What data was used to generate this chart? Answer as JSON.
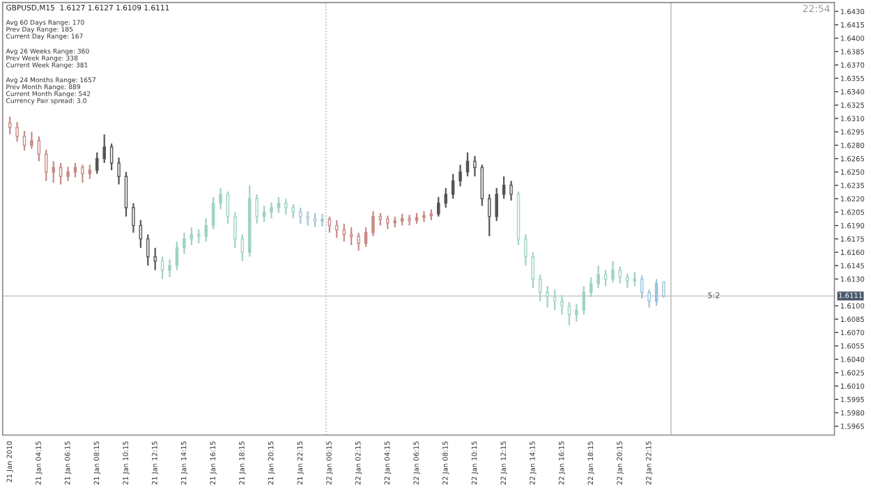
{
  "chart_data": {
    "type": "candlestick",
    "title": "GBPUSD,M15  1.6127 1.6127 1.6109 1.6111",
    "subtitle": "22:54",
    "annotations": [
      "Avg 60 Days Range: 170\nPrev Day Range: 185\nCurrent Day Range: 167",
      "Avg 26 Weeks Range: 360\nPrev Week Range: 338\nCurrent Week Range: 381",
      "Avg 24 Months Range: 1657\nPrev Month Range: 889\nCurrent Month Range: 542\nCurrency Pair spread: 3.0",
      {
        "text": "5:2",
        "x": "2010-01-23T02:42",
        "y": 1.6111
      }
    ],
    "x": [
      "2010-01-21T02:15",
      "2010-01-21T02:45",
      "2010-01-21T03:15",
      "2010-01-21T03:45",
      "2010-01-21T04:15",
      "2010-01-21T04:45",
      "2010-01-21T05:15",
      "2010-01-21T05:45",
      "2010-01-21T06:15",
      "2010-01-21T06:45",
      "2010-01-21T07:15",
      "2010-01-21T07:45",
      "2010-01-21T08:15",
      "2010-01-21T08:45",
      "2010-01-21T09:15",
      "2010-01-21T09:45",
      "2010-01-21T10:15",
      "2010-01-21T10:45",
      "2010-01-21T11:15",
      "2010-01-21T11:45",
      "2010-01-21T12:15",
      "2010-01-21T12:45",
      "2010-01-21T13:15",
      "2010-01-21T13:45",
      "2010-01-21T14:15",
      "2010-01-21T14:45",
      "2010-01-21T15:15",
      "2010-01-21T15:45",
      "2010-01-21T16:15",
      "2010-01-21T16:45",
      "2010-01-21T17:15",
      "2010-01-21T17:45",
      "2010-01-21T18:15",
      "2010-01-21T18:45",
      "2010-01-21T19:15",
      "2010-01-21T19:45",
      "2010-01-21T20:15",
      "2010-01-21T20:45",
      "2010-01-21T21:15",
      "2010-01-21T21:45",
      "2010-01-21T22:15",
      "2010-01-21T22:45",
      "2010-01-21T23:15",
      "2010-01-21T23:45",
      "2010-01-22T00:15",
      "2010-01-22T00:45",
      "2010-01-22T01:15",
      "2010-01-22T01:45",
      "2010-01-22T02:15",
      "2010-01-22T02:45",
      "2010-01-22T03:15",
      "2010-01-22T03:45",
      "2010-01-22T04:15",
      "2010-01-22T04:45",
      "2010-01-22T05:15",
      "2010-01-22T05:45",
      "2010-01-22T06:15",
      "2010-01-22T06:45",
      "2010-01-22T07:15",
      "2010-01-22T07:45",
      "2010-01-22T08:15",
      "2010-01-22T08:45",
      "2010-01-22T09:15",
      "2010-01-22T09:45",
      "2010-01-22T10:15",
      "2010-01-22T10:45",
      "2010-01-22T11:15",
      "2010-01-22T11:45",
      "2010-01-22T12:15",
      "2010-01-22T12:45",
      "2010-01-22T13:15",
      "2010-01-22T13:45",
      "2010-01-22T14:15",
      "2010-01-22T14:45",
      "2010-01-22T15:15",
      "2010-01-22T15:45",
      "2010-01-22T16:15",
      "2010-01-22T16:45",
      "2010-01-22T17:15",
      "2010-01-22T17:45",
      "2010-01-22T18:15",
      "2010-01-22T18:45",
      "2010-01-22T19:15",
      "2010-01-22T19:45",
      "2010-01-22T20:15",
      "2010-01-22T20:45",
      "2010-01-22T21:15",
      "2010-01-22T21:45",
      "2010-01-22T22:15",
      "2010-01-22T22:45",
      "2010-01-22T23:15"
    ],
    "ohlc": [
      [
        1.6305,
        1.6312,
        1.6292,
        1.63
      ],
      [
        1.63,
        1.6306,
        1.6284,
        1.629
      ],
      [
        1.629,
        1.6296,
        1.6274,
        1.628
      ],
      [
        1.628,
        1.6295,
        1.6276,
        1.6285
      ],
      [
        1.6285,
        1.629,
        1.6262,
        1.627
      ],
      [
        1.627,
        1.6275,
        1.624,
        1.625
      ],
      [
        1.625,
        1.6262,
        1.6238,
        1.6255
      ],
      [
        1.6255,
        1.626,
        1.6236,
        1.6245
      ],
      [
        1.6245,
        1.6256,
        1.624,
        1.625
      ],
      [
        1.625,
        1.626,
        1.6244,
        1.6255
      ],
      [
        1.6255,
        1.6258,
        1.6238,
        1.6248
      ],
      [
        1.6248,
        1.6258,
        1.6242,
        1.6252
      ],
      [
        1.6252,
        1.6272,
        1.6248,
        1.6265
      ],
      [
        1.6265,
        1.6292,
        1.626,
        1.6278
      ],
      [
        1.6278,
        1.6282,
        1.6252,
        1.626
      ],
      [
        1.626,
        1.6266,
        1.6236,
        1.6245
      ],
      [
        1.6245,
        1.625,
        1.62,
        1.621
      ],
      [
        1.621,
        1.6215,
        1.6182,
        1.619
      ],
      [
        1.619,
        1.6196,
        1.6165,
        1.6175
      ],
      [
        1.6175,
        1.618,
        1.6145,
        1.6155
      ],
      [
        1.6155,
        1.6165,
        1.614,
        1.615
      ],
      [
        1.615,
        1.6155,
        1.613,
        1.614
      ],
      [
        1.614,
        1.6152,
        1.6132,
        1.6145
      ],
      [
        1.6145,
        1.6172,
        1.614,
        1.6165
      ],
      [
        1.6165,
        1.6182,
        1.6158,
        1.6175
      ],
      [
        1.6175,
        1.6188,
        1.6168,
        1.618
      ],
      [
        1.618,
        1.6186,
        1.617,
        1.6178
      ],
      [
        1.6178,
        1.6198,
        1.6172,
        1.619
      ],
      [
        1.619,
        1.6222,
        1.6186,
        1.6215
      ],
      [
        1.6215,
        1.6232,
        1.6208,
        1.6225
      ],
      [
        1.6225,
        1.6228,
        1.6192,
        1.62
      ],
      [
        1.62,
        1.6205,
        1.6165,
        1.6175
      ],
      [
        1.6175,
        1.618,
        1.615,
        1.616
      ],
      [
        1.616,
        1.6235,
        1.6155,
        1.622
      ],
      [
        1.622,
        1.6225,
        1.6192,
        1.62
      ],
      [
        1.62,
        1.6212,
        1.6194,
        1.6205
      ],
      [
        1.6205,
        1.6216,
        1.6198,
        1.621
      ],
      [
        1.621,
        1.6222,
        1.6204,
        1.6215
      ],
      [
        1.6215,
        1.622,
        1.6202,
        1.621
      ],
      [
        1.621,
        1.6214,
        1.6198,
        1.6205
      ],
      [
        1.6205,
        1.621,
        1.6192,
        1.62
      ],
      [
        1.62,
        1.6206,
        1.619,
        1.6198
      ],
      [
        1.6198,
        1.6204,
        1.6188,
        1.6195
      ],
      [
        1.6195,
        1.6203,
        1.6189,
        1.6197
      ],
      [
        1.6197,
        1.62,
        1.6182,
        1.619
      ],
      [
        1.619,
        1.6196,
        1.6176,
        1.6185
      ],
      [
        1.6185,
        1.6192,
        1.6172,
        1.618
      ],
      [
        1.618,
        1.6188,
        1.6168,
        1.6178
      ],
      [
        1.6178,
        1.6182,
        1.6162,
        1.617
      ],
      [
        1.617,
        1.6188,
        1.6166,
        1.6182
      ],
      [
        1.6182,
        1.6206,
        1.6178,
        1.62
      ],
      [
        1.62,
        1.6204,
        1.619,
        1.6197
      ],
      [
        1.6197,
        1.6201,
        1.6186,
        1.6193
      ],
      [
        1.6193,
        1.62,
        1.6188,
        1.6195
      ],
      [
        1.6195,
        1.6203,
        1.619,
        1.6198
      ],
      [
        1.6198,
        1.6202,
        1.619,
        1.6196
      ],
      [
        1.6196,
        1.6204,
        1.6192,
        1.6199
      ],
      [
        1.6199,
        1.6206,
        1.6194,
        1.6201
      ],
      [
        1.6201,
        1.6208,
        1.6196,
        1.6203
      ],
      [
        1.6203,
        1.6222,
        1.62,
        1.6215
      ],
      [
        1.6215,
        1.6232,
        1.621,
        1.6225
      ],
      [
        1.6225,
        1.6248,
        1.622,
        1.624
      ],
      [
        1.624,
        1.6258,
        1.6234,
        1.625
      ],
      [
        1.625,
        1.6272,
        1.6245,
        1.6262
      ],
      [
        1.6262,
        1.6268,
        1.6245,
        1.6255
      ],
      [
        1.6255,
        1.6258,
        1.6212,
        1.622
      ],
      [
        1.622,
        1.6225,
        1.6178,
        1.62
      ],
      [
        1.62,
        1.6232,
        1.6195,
        1.6225
      ],
      [
        1.6225,
        1.6245,
        1.622,
        1.6235
      ],
      [
        1.6235,
        1.624,
        1.6218,
        1.6225
      ],
      [
        1.6225,
        1.6228,
        1.6168,
        1.6175
      ],
      [
        1.6175,
        1.618,
        1.6145,
        1.6155
      ],
      [
        1.6155,
        1.616,
        1.612,
        1.613
      ],
      [
        1.613,
        1.6135,
        1.6105,
        1.6115
      ],
      [
        1.6115,
        1.6122,
        1.6098,
        1.611
      ],
      [
        1.611,
        1.6118,
        1.6095,
        1.6105
      ],
      [
        1.6105,
        1.6112,
        1.609,
        1.61
      ],
      [
        1.61,
        1.6104,
        1.6078,
        1.609
      ],
      [
        1.609,
        1.6102,
        1.6082,
        1.6095
      ],
      [
        1.6095,
        1.6122,
        1.609,
        1.6115
      ],
      [
        1.6115,
        1.6132,
        1.611,
        1.6125
      ],
      [
        1.6125,
        1.6145,
        1.612,
        1.6135
      ],
      [
        1.6135,
        1.614,
        1.6122,
        1.613
      ],
      [
        1.613,
        1.615,
        1.6126,
        1.614
      ],
      [
        1.614,
        1.6144,
        1.6125,
        1.6132
      ],
      [
        1.6132,
        1.6136,
        1.612,
        1.6128
      ],
      [
        1.6128,
        1.6138,
        1.6122,
        1.613
      ],
      [
        1.613,
        1.6134,
        1.6108,
        1.6115
      ],
      [
        1.6115,
        1.6118,
        1.6098,
        1.6105
      ],
      [
        1.6105,
        1.613,
        1.61,
        1.6125
      ],
      [
        1.6127,
        1.6127,
        1.6109,
        1.6111
      ]
    ],
    "colors": [
      "#c98a86",
      "#c98a86",
      "#c98a86",
      "#c98a86",
      "#c98a86",
      "#c98a86",
      "#c98a86",
      "#c98a86",
      "#c98a86",
      "#c98a86",
      "#c98a86",
      "#c98a86",
      "#555555",
      "#555555",
      "#555555",
      "#555555",
      "#555555",
      "#555555",
      "#555555",
      "#555555",
      "#555555",
      "#9fd3c0",
      "#9fd3c0",
      "#9fd3c0",
      "#9fd3c0",
      "#9fd3c0",
      "#9fd3c0",
      "#9fd3c0",
      "#9fd3c0",
      "#9fd3c0",
      "#9fd3c0",
      "#9fd3c0",
      "#9fd3c0",
      "#9fd3c0",
      "#9fd3c0",
      "#9fd3c0",
      "#9fd3c0",
      "#9fd3c0",
      "#9fd3c0",
      "#9fd3c0",
      "#a3c6d4",
      "#a3c6d4",
      "#a3c6d4",
      "#a3c6d4",
      "#c98a86",
      "#c98a86",
      "#c98a86",
      "#c98a86",
      "#c98a86",
      "#c98a86",
      "#c98a86",
      "#c98a86",
      "#c98a86",
      "#c98a86",
      "#c98a86",
      "#c98a86",
      "#c98a86",
      "#c98a86",
      "#c98a86",
      "#555555",
      "#555555",
      "#555555",
      "#555555",
      "#555555",
      "#555555",
      "#555555",
      "#555555",
      "#555555",
      "#555555",
      "#555555",
      "#9fd3c0",
      "#9fd3c0",
      "#9fd3c0",
      "#9fd3c0",
      "#9fd3c0",
      "#9fd3c0",
      "#9fd3c0",
      "#9fd3c0",
      "#9fd3c0",
      "#9fd3c0",
      "#9fd3c0",
      "#9fd3c0",
      "#9fd3c0",
      "#9fd3c0",
      "#9fd3c0",
      "#9fd3c0",
      "#9fd3c0",
      "#9cc3dc",
      "#9cc3dc",
      "#9cc3dc",
      "#9cc3dc"
    ],
    "xlim": [
      "2010-01-21T01:45",
      "2010-01-23T11:00"
    ],
    "xticks": [
      {
        "value": "2010-01-21T02:15",
        "label": "21 Jan 2010"
      },
      {
        "value": "2010-01-21T04:15",
        "label": "21 Jan 04:15"
      },
      {
        "value": "2010-01-21T06:15",
        "label": "21 Jan 06:15"
      },
      {
        "value": "2010-01-21T08:15",
        "label": "21 Jan 08:15"
      },
      {
        "value": "2010-01-21T10:15",
        "label": "21 Jan 10:15"
      },
      {
        "value": "2010-01-21T12:15",
        "label": "21 Jan 12:15"
      },
      {
        "value": "2010-01-21T14:15",
        "label": "21 Jan 14:15"
      },
      {
        "value": "2010-01-21T16:15",
        "label": "21 Jan 16:15"
      },
      {
        "value": "2010-01-21T18:15",
        "label": "21 Jan 18:15"
      },
      {
        "value": "2010-01-21T20:15",
        "label": "21 Jan 20:15"
      },
      {
        "value": "2010-01-21T22:15",
        "label": "21 Jan 22:15"
      },
      {
        "value": "2010-01-22T00:15",
        "label": "22 Jan 00:15"
      },
      {
        "value": "2010-01-22T02:15",
        "label": "22 Jan 02:15"
      },
      {
        "value": "2010-01-22T04:15",
        "label": "22 Jan 04:15"
      },
      {
        "value": "2010-01-22T06:15",
        "label": "22 Jan 06:15"
      },
      {
        "value": "2010-01-22T08:15",
        "label": "22 Jan 08:15"
      },
      {
        "value": "2010-01-22T10:15",
        "label": "22 Jan 10:15"
      },
      {
        "value": "2010-01-22T12:15",
        "label": "22 Jan 12:15"
      },
      {
        "value": "2010-01-22T14:15",
        "label": "22 Jan 14:15"
      },
      {
        "value": "2010-01-22T16:15",
        "label": "22 Jan 16:15"
      },
      {
        "value": "2010-01-22T18:15",
        "label": "22 Jan 18:15"
      },
      {
        "value": "2010-01-22T20:15",
        "label": "22 Jan 20:15"
      },
      {
        "value": "2010-01-22T22:15",
        "label": "22 Jan 22:15"
      }
    ],
    "ylim": [
      1.5955,
      1.644
    ],
    "yticks": [
      {
        "value": 1.5965,
        "label": "1.5965"
      },
      {
        "value": 1.598,
        "label": "1.5980"
      },
      {
        "value": 1.5995,
        "label": "1.5995"
      },
      {
        "value": 1.601,
        "label": "1.6010"
      },
      {
        "value": 1.6025,
        "label": "1.6025"
      },
      {
        "value": 1.604,
        "label": "1.6040"
      },
      {
        "value": 1.6055,
        "label": "1.6055"
      },
      {
        "value": 1.607,
        "label": "1.6070"
      },
      {
        "value": 1.6085,
        "label": "1.6085"
      },
      {
        "value": 1.61,
        "label": "1.6100"
      },
      {
        "value": 1.613,
        "label": "1.6130"
      },
      {
        "value": 1.6145,
        "label": "1.6145"
      },
      {
        "value": 1.616,
        "label": "1.6160"
      },
      {
        "value": 1.6175,
        "label": "1.6175"
      },
      {
        "value": 1.619,
        "label": "1.6190"
      },
      {
        "value": 1.6205,
        "label": "1.6205"
      },
      {
        "value": 1.622,
        "label": "1.6220"
      },
      {
        "value": 1.6235,
        "label": "1.6235"
      },
      {
        "value": 1.625,
        "label": "1.6250"
      },
      {
        "value": 1.6265,
        "label": "1.6265"
      },
      {
        "value": 1.628,
        "label": "1.6280"
      },
      {
        "value": 1.6295,
        "label": "1.6295"
      },
      {
        "value": 1.631,
        "label": "1.6310"
      },
      {
        "value": 1.6325,
        "label": "1.6325"
      },
      {
        "value": 1.634,
        "label": "1.6340"
      },
      {
        "value": 1.6355,
        "label": "1.6355"
      },
      {
        "value": 1.637,
        "label": "1.6370"
      },
      {
        "value": 1.6385,
        "label": "1.6385"
      },
      {
        "value": 1.64,
        "label": "1.6400"
      },
      {
        "value": 1.6415,
        "label": "1.6415"
      },
      {
        "value": 1.643,
        "label": "1.6430"
      }
    ],
    "ref_lines": [
      {
        "axis": "y",
        "value": 1.6111,
        "label": "1.6111",
        "color": "#d0d0d0",
        "line_style": "solid"
      },
      {
        "axis": "x",
        "value": "2010-01-22T00:00",
        "label": null,
        "color": "#b0b0b0",
        "line_style": "dotted"
      },
      {
        "axis": "x",
        "value": "2010-01-22T23:45",
        "label": null,
        "color": "#c0c0c0",
        "line_style": "solid"
      }
    ],
    "grid": false
  }
}
